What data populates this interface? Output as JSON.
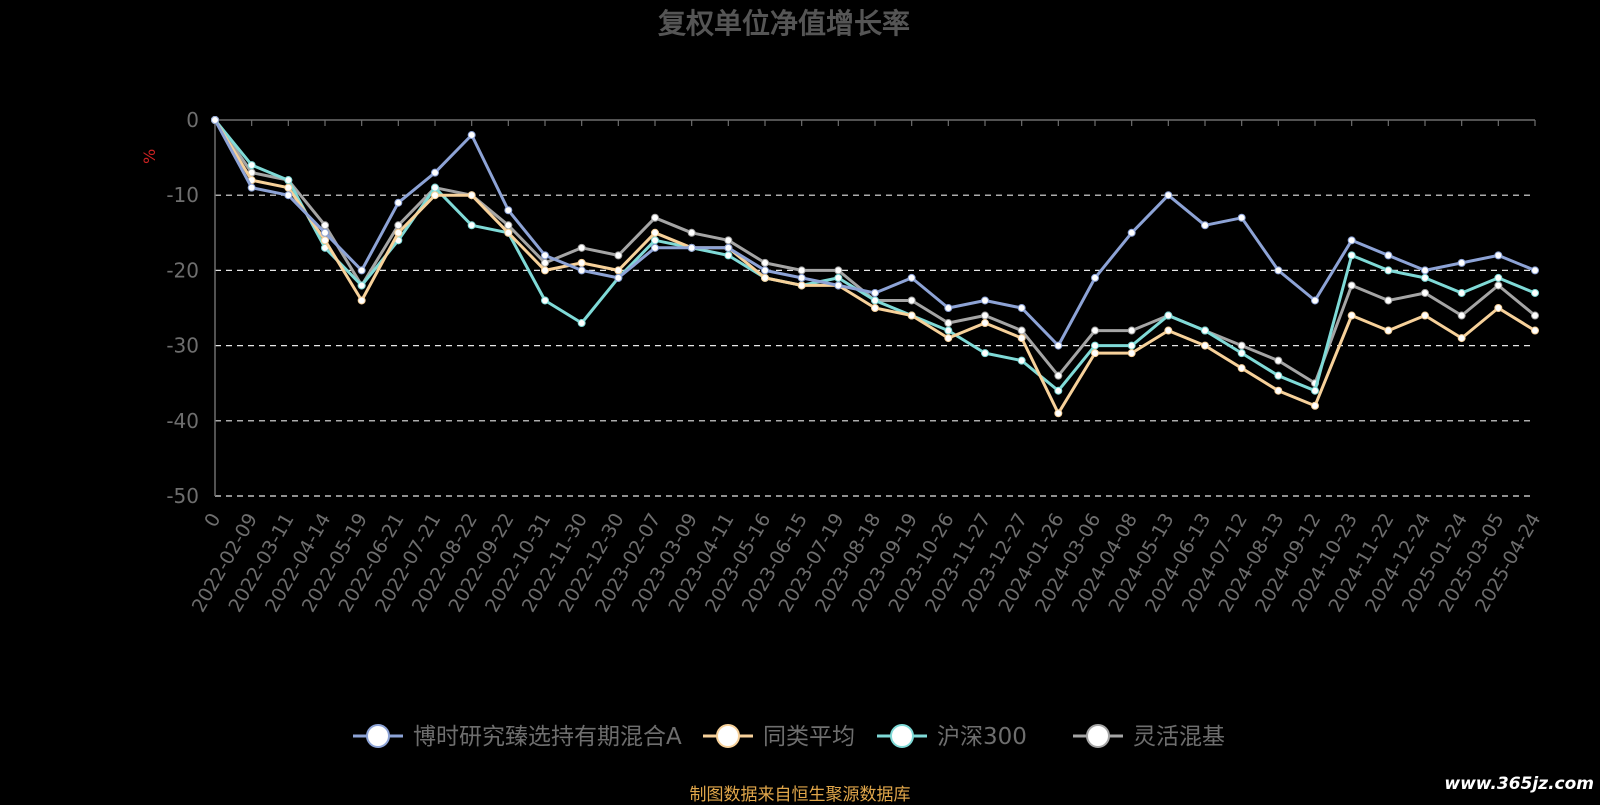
{
  "source_note": "制图数据来自恒生聚源数据库",
  "watermark": "www.365jz.com",
  "chart_data": {
    "type": "line",
    "title": "复权单位净值增长率",
    "ylabel": "%",
    "ylim": [
      -50,
      0
    ],
    "yticks": [
      0,
      -10,
      -20,
      -30,
      -40,
      -50
    ],
    "grid": true,
    "legend_position": "bottom-center",
    "colors": {
      "title": "#555555",
      "axis": "#6e6e6e",
      "tick_label": "#6e6e6e",
      "ylabel": "#cc2222",
      "gridline": "#e6e6e6",
      "legend_text": "#6e6e6e",
      "point_fill": "#ffffff"
    },
    "categories": [
      "0",
      "2022-02-09",
      "2022-03-11",
      "2022-04-14",
      "2022-05-19",
      "2022-06-21",
      "2022-07-21",
      "2022-08-22",
      "2022-09-22",
      "2022-10-31",
      "2022-11-30",
      "2022-12-30",
      "2023-02-07",
      "2023-03-09",
      "2023-04-11",
      "2023-05-16",
      "2023-06-15",
      "2023-07-19",
      "2023-08-18",
      "2023-09-19",
      "2023-10-26",
      "2023-11-27",
      "2023-12-27",
      "2024-01-26",
      "2024-03-06",
      "2024-04-08",
      "2024-05-13",
      "2024-06-13",
      "2024-07-12",
      "2024-08-13",
      "2024-09-12",
      "2024-10-23",
      "2024-11-22",
      "2024-12-24",
      "2025-01-24",
      "2025-03-05",
      "2025-04-24"
    ],
    "series": [
      {
        "name": "博时研究臻选持有期混合A",
        "color": "#8da3d6",
        "values": [
          0,
          -9,
          -10,
          -15,
          -20,
          -11,
          -7,
          -2,
          -12,
          -18,
          -20,
          -21,
          -17,
          -17,
          -17,
          -20,
          -21,
          -22,
          -23,
          -21,
          -25,
          -24,
          -25,
          -30,
          -21,
          -15,
          -10,
          -14,
          -13,
          -20,
          -24,
          -16,
          -18,
          -20,
          -19,
          -18,
          -20
        ]
      },
      {
        "name": "同类平均",
        "color": "#f7d19a",
        "values": [
          0,
          -8,
          -9,
          -16,
          -24,
          -15,
          -10,
          -10,
          -15,
          -20,
          -19,
          -20,
          -15,
          -17,
          -17,
          -21,
          -22,
          -22,
          -25,
          -26,
          -29,
          -27,
          -29,
          -39,
          -31,
          -31,
          -28,
          -30,
          -33,
          -36,
          -38,
          -26,
          -28,
          -26,
          -29,
          -25,
          -28
        ]
      },
      {
        "name": "沪深300",
        "color": "#7fdad7",
        "values": [
          0,
          -6,
          -8,
          -17,
          -22,
          -16,
          -9,
          -14,
          -15,
          -24,
          -27,
          -21,
          -16,
          -17,
          -18,
          -21,
          -22,
          -21,
          -24,
          -26,
          -28,
          -31,
          -32,
          -36,
          -30,
          -30,
          -26,
          -28,
          -31,
          -34,
          -36,
          -18,
          -20,
          -21,
          -23,
          -21,
          -23
        ]
      },
      {
        "name": "灵活混基",
        "color": "#a5a5a5",
        "values": [
          0,
          -7,
          -8,
          -14,
          -22,
          -14,
          -9,
          -10,
          -14,
          -19,
          -17,
          -18,
          -13,
          -15,
          -16,
          -19,
          -20,
          -20,
          -24,
          -24,
          -27,
          -26,
          -28,
          -34,
          -28,
          -28,
          -26,
          -28,
          -30,
          -32,
          -35,
          -22,
          -24,
          -23,
          -26,
          -22,
          -26
        ]
      }
    ]
  }
}
